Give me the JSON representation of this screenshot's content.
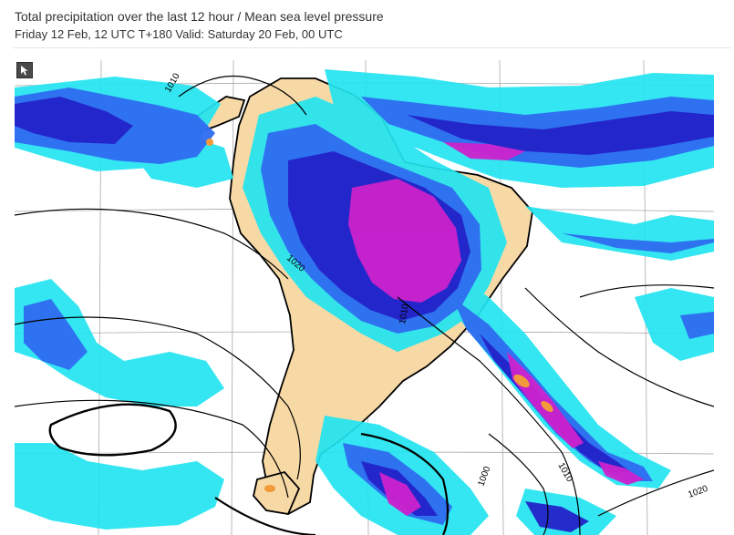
{
  "header": {
    "title": "Total precipitation over the last 12 hour / Mean sea level pressure",
    "subtitle": "Friday 12 Feb, 12 UTC T+180 Valid: Saturday 20 Feb, 00 UTC"
  },
  "map": {
    "isobar_labels": [
      "1010",
      "1020",
      "1010",
      "1010",
      "1000",
      "1020"
    ],
    "colors": {
      "land": "#f7d9a6",
      "sea": "#ffffff",
      "precip_light": "#22e4f0",
      "precip_moderate": "#2f6cf0",
      "precip_heavy": "#2323c8",
      "precip_intense": "#cc22cc",
      "precip_extreme": "#f29a3a",
      "isobar": "#000000",
      "graticule": "#9a9a9a"
    },
    "expand_icon": "expand-arrow-icon"
  }
}
